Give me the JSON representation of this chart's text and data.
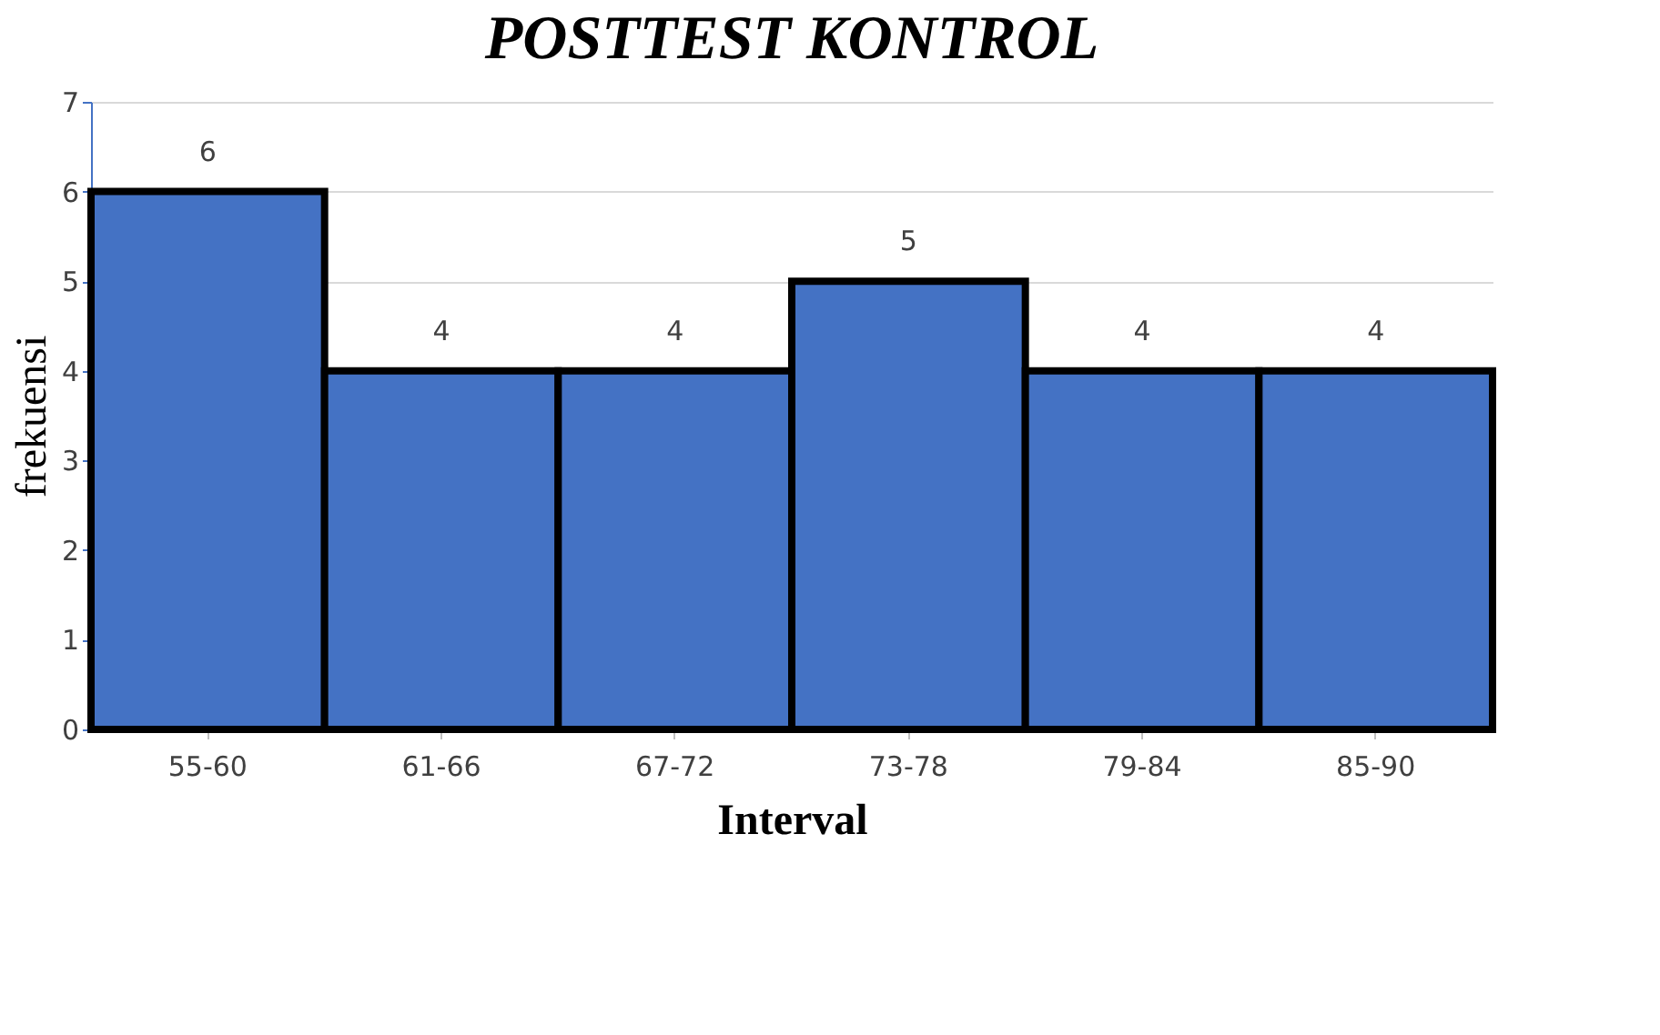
{
  "chart_data": {
    "type": "bar",
    "title": "POSTTEST KONTROL",
    "xlabel": "Interval",
    "ylabel": "frekuensi",
    "categories": [
      "55-60",
      "61-66",
      "67-72",
      "73-78",
      "79-84",
      "85-90"
    ],
    "values": [
      6,
      4,
      4,
      5,
      4,
      4
    ],
    "color": "#4472c4",
    "ylim": [
      0,
      7
    ],
    "yticks": [
      0,
      1,
      2,
      3,
      4,
      5,
      6,
      7
    ],
    "grid": "y",
    "data_labels": true
  }
}
